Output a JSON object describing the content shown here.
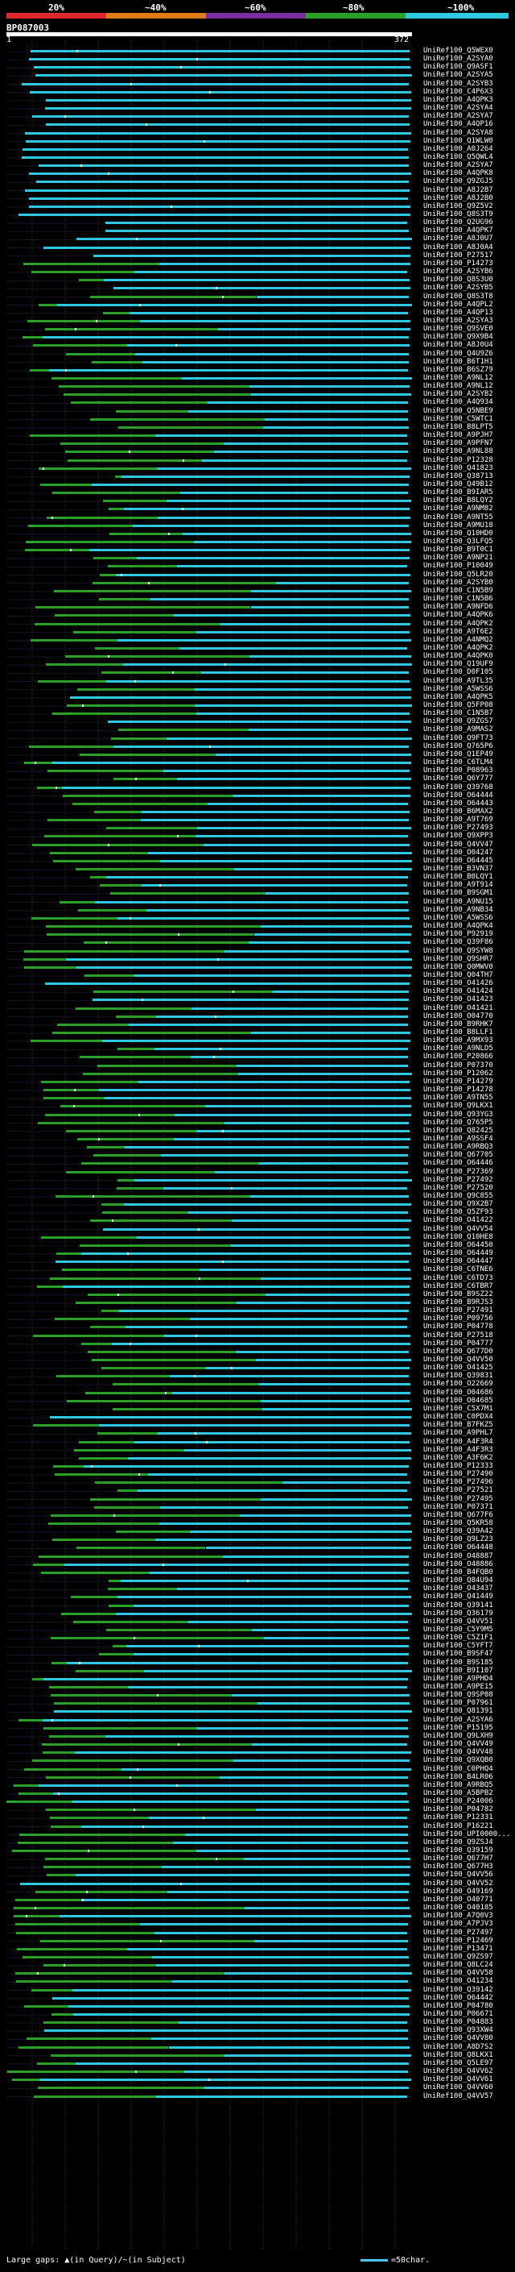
{
  "legend": {
    "ticks": [
      "20%",
      "~40%",
      "~60%",
      "~80%",
      "~100%"
    ],
    "colors": [
      "#e0282e",
      "#e07b1a",
      "#7a2fa0",
      "#2aa02a",
      "#2fc8e0"
    ]
  },
  "query": {
    "id": "BP087003",
    "start": "1",
    "end": "372"
  },
  "hits": [
    "UniRef100_Q5WEX0",
    "UniRef100_A2SYA0",
    "UniRef100_Q9ASF1",
    "UniRef100_A2SYA5",
    "UniRef100_A2SYB3",
    "UniRef100_C4P6X3",
    "UniRef100_A4QPK3",
    "UniRef100_A2SYA4",
    "UniRef100_A2SYA7",
    "UniRef100_A4QP16",
    "UniRef100_A2SYA8",
    "UniRef100_Q1WLW0",
    "UniRef100_A0J264",
    "UniRef100_Q5QWL4",
    "UniRef100_A2SYA7",
    "UniRef100_A4QPK8",
    "UniRef100_Q9ZGJ5",
    "UniRef100_A8J2B7",
    "UniRef100_A8J2B0",
    "UniRef100_Q9Z5V2",
    "UniRef100_Q8S3T9",
    "UniRef100_Q2UG96",
    "UniRef100_A4QPK7",
    "UniRef100_A8J0U7",
    "UniRef100_A8J0A4",
    "UniRef100_P27517",
    "UniRef100_P14273",
    "UniRef100_A2SYB6",
    "UniRef100_Q8S3U0",
    "UniRef100_A2SYB5",
    "UniRef100_Q8S3T8",
    "UniRef100_A4QPL2",
    "UniRef100_A4QP13",
    "UniRef100_A2SYA3",
    "UniRef100_Q9SVE0",
    "UniRef100_Q9X9B4",
    "UniRef100_A8J0U4",
    "UniRef100_Q4U9Z6",
    "UniRef100_B6T1H1",
    "UniRef100_B6SZ79",
    "UniRef100_A9NL12",
    "UniRef100_A9NL12",
    "UniRef100_A2SYB2",
    "UniRef100_A4Q934",
    "UniRef100_Q5NBE9",
    "UniRef100_C5WTC1",
    "UniRef100_B8LPT5",
    "UniRef100_A9PJH7",
    "UniRef100_A9PFN7",
    "UniRef100_A9NL88",
    "UniRef100_P12328",
    "UniRef100_Q41823",
    "UniRef100_Q38713",
    "UniRef100_Q49B12",
    "UniRef100_B9IAR5",
    "UniRef100_B8LQY2",
    "UniRef100_A9NM82",
    "UniRef100_A9NT55",
    "UniRef100_A9MU18",
    "UniRef100_Q10HD0",
    "UniRef100_Q3LFQ5",
    "UniRef100_B9T0C1",
    "UniRef100_A9NP21",
    "UniRef100_P10049",
    "UniRef100_Q5LR20",
    "UniRef100_A2SYB0",
    "UniRef100_C1N5B9",
    "UniRef100_C1N5B6",
    "UniRef100_A9NFD6",
    "UniRef100_A4QPK6",
    "UniRef100_A4QPK2",
    "UniRef100_A9T6E2",
    "UniRef100_A4NMQ2",
    "UniRef100_A4QPK2",
    "UniRef100_A4QPK0",
    "UniRef100_Q19UF9",
    "UniRef100_D0F105",
    "UniRef100_A9TL35",
    "UniRef100_A5WSS6",
    "UniRef100_A4QPK5",
    "UniRef100_Q5FP08",
    "UniRef100_C1N5B7",
    "UniRef100_Q9ZGS7",
    "UniRef100_A9MAS2",
    "UniRef100_Q9FT73",
    "UniRef100_Q765P6",
    "UniRef100_Q1EP49",
    "UniRef100_C6TLM4",
    "UniRef100_P08963",
    "UniRef100_Q6Y777",
    "UniRef100_Q39768",
    "UniRef100_O64444",
    "UniRef100_O64443",
    "UniRef100_B6MAX2",
    "UniRef100_A9T769",
    "UniRef100_P27493",
    "UniRef100_Q9XPP3",
    "UniRef100_Q4VV47",
    "UniRef100_O04247",
    "UniRef100_O64445",
    "UniRef100_B3VN37",
    "UniRef100_B0LQY1",
    "UniRef100_A9T914",
    "UniRef100_B9SGM1",
    "UniRef100_A9NU15",
    "UniRef100_A9NB34",
    "UniRef100_A5WSS6",
    "UniRef100_A4QPK4",
    "UniRef100_P92919",
    "UniRef100_Q39F86",
    "UniRef100_Q9SYW8",
    "UniRef100_Q9SHR7",
    "UniRef100_Q0MWV0",
    "UniRef100_Q04TH7",
    "UniRef100_O41426",
    "UniRef100_O41424",
    "UniRef100_O41423",
    "UniRef100_O41421",
    "UniRef100_O04770",
    "UniRef100_B9RHK7",
    "UniRef100_B8LLF1",
    "UniRef100_A9MX93",
    "UniRef100_A9NLD5",
    "UniRef100_P20866",
    "UniRef100_P07370",
    "UniRef100_P12062",
    "UniRef100_P14279",
    "UniRef100_P14278",
    "UniRef100_A9TN55",
    "UniRef100_Q9LKX1",
    "UniRef100_Q93YG3",
    "UniRef100_Q765P5",
    "UniRef100_Q82425",
    "UniRef100_A9SSF4",
    "UniRef100_A9RBQ3",
    "UniRef100_Q67705",
    "UniRef100_O64446",
    "UniRef100_P27369",
    "UniRef100_P27492",
    "UniRef100_P27520",
    "UniRef100_Q9C855",
    "UniRef100_Q9X2B7",
    "UniRef100_Q5ZF93",
    "UniRef100_O41422",
    "UniRef100_Q4VV54",
    "UniRef100_Q10HE8",
    "UniRef100_O64450",
    "UniRef100_O64449",
    "UniRef100_O64447",
    "UniRef100_C6TNE6",
    "UniRef100_C6TD73",
    "UniRef100_C6TBR7",
    "UniRef100_B9SZ22",
    "UniRef100_B9RJS3",
    "UniRef100_P27491",
    "UniRef100_P09756",
    "UniRef100_P04778",
    "UniRef100_P27518",
    "UniRef100_P04777",
    "UniRef100_Q677D0",
    "UniRef100_Q4VV50",
    "UniRef100_O41425",
    "UniRef100_Q39831",
    "UniRef100_O22669",
    "UniRef100_O04686",
    "UniRef100_O04685",
    "UniRef100_C5X7M1",
    "UniRef100_C0PDX4",
    "UniRef100_B7FKZ5",
    "UniRef100_A9PHL7",
    "UniRef100_A4F3R4",
    "UniRef100_A4F3R3",
    "UniRef100_A3F6K2",
    "UniRef100_P12333",
    "UniRef100_P27490",
    "UniRef100_P27496",
    "UniRef100_P27521",
    "UniRef100_P27495",
    "UniRef100_P07371",
    "UniRef100_Q677F6",
    "UniRef100_Q5KR58",
    "UniRef100_Q39A42",
    "UniRef100_Q9LZ23",
    "UniRef100_O64448",
    "UniRef100_O48887",
    "UniRef100_O48886",
    "UniRef100_B4FQB0",
    "UniRef100_Q84U94",
    "UniRef100_O43437",
    "UniRef100_Q41449",
    "UniRef100_Q39141",
    "UniRef100_Q36179",
    "UniRef100_Q4VV51",
    "UniRef100_C5Y9M5",
    "UniRef100_C5Z1F1",
    "UniRef100_C5YFT7",
    "UniRef100_B9SF47",
    "UniRef100_B9S185",
    "UniRef100_B9I107",
    "UniRef100_A9PHD4",
    "UniRef100_A9PE15",
    "UniRef100_Q9SP08",
    "UniRef100_P07961",
    "UniRef100_Q81391",
    "UniRef100_A2SYA6",
    "UniRef100_P15195",
    "UniRef100_Q9LXH9",
    "UniRef100_Q4VV49",
    "UniRef100_Q4VV48",
    "UniRef100_Q9XQB0",
    "UniRef100_C0PHQ4",
    "UniRef100_B4LR06",
    "UniRef100_A9RBQ5",
    "UniRef100_A5BPB2",
    "UniRef100_P24006",
    "UniRef100_P04782",
    "UniRef100_P12331",
    "UniRef100_P16221",
    "UniRef100_UPI0000...",
    "UniRef100_Q9ZSJ4",
    "UniRef100_Q39159",
    "UniRef100_Q677H7",
    "UniRef100_Q677H3",
    "UniRef100_Q4VV56",
    "UniRef100_Q4VV52",
    "UniRef100_O49169",
    "UniRef100_O40771",
    "UniRef100_O40185",
    "UniRef100_A7Q0V3",
    "UniRef100_A7PJV3",
    "UniRef100_P27497",
    "UniRef100_P12469",
    "UniRef100_P13471",
    "UniRef100_Q9ZS97",
    "UniRef100_Q8LC24",
    "UniRef100_Q4VV58",
    "UniRef100_O41234",
    "UniRef100_Q39142",
    "UniRef100_O64442",
    "UniRef100_P04780",
    "UniRef100_P06671",
    "UniRef100_P04883",
    "UniRef100_Q93XW4",
    "UniRef100_Q4VV80",
    "UniRef100_A8D7S2",
    "UniRef100_Q8LKX1",
    "UniRef100_Q5LE97",
    "UniRef100_Q4VV62",
    "UniRef100_Q4VV61",
    "UniRef100_Q4VV60",
    "UniRef100_Q4VV57"
  ],
  "footer": {
    "gaps_label": "Large gaps:",
    "gaps_symbols": "▲(in Query)/~(in Subject)",
    "scale_label": "=50char."
  }
}
